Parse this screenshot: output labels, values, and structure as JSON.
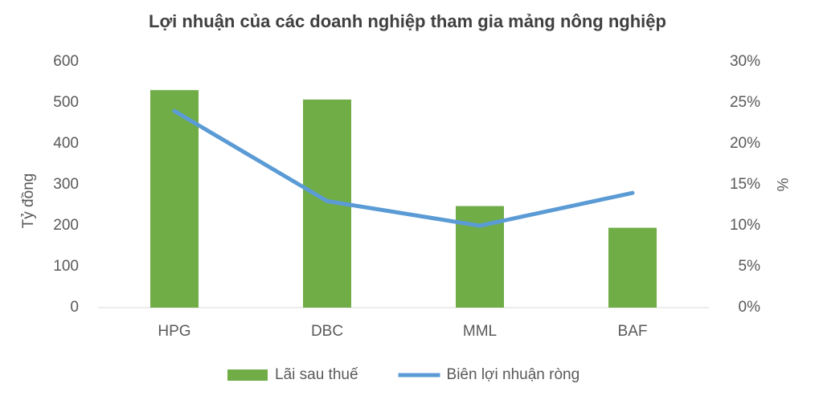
{
  "chart_data": {
    "type": "bar",
    "title": "Lợi nhuận của các doanh nghiệp tham gia mảng nông nghiệp",
    "y_label": "Tỷ đồng",
    "y2_label": "%",
    "categories": [
      "HPG",
      "DBC",
      "MML",
      "BAF"
    ],
    "series": [
      {
        "name": "Lãi sau thuế",
        "type": "bar",
        "color": "#70ad47",
        "values": [
          531,
          508,
          248,
          195
        ]
      },
      {
        "name": "Biên lợi nhuận ròng",
        "type": "line",
        "axis": "y2",
        "color": "#5b9bd5",
        "values": [
          24,
          13,
          10,
          14
        ]
      }
    ],
    "ylim": [
      0,
      600
    ],
    "yticks": [
      0,
      100,
      200,
      300,
      400,
      500,
      600
    ],
    "y2lim": [
      0,
      30
    ],
    "y2ticks": [
      {
        "value": 0,
        "label": "0%"
      },
      {
        "value": 5,
        "label": "5%"
      },
      {
        "value": 10,
        "label": "10%"
      },
      {
        "value": 15,
        "label": "15%"
      },
      {
        "value": 20,
        "label": "20%"
      },
      {
        "value": 25,
        "label": "25%"
      },
      {
        "value": 30,
        "label": "30%"
      }
    ],
    "grid": false,
    "legend": "bottom"
  }
}
